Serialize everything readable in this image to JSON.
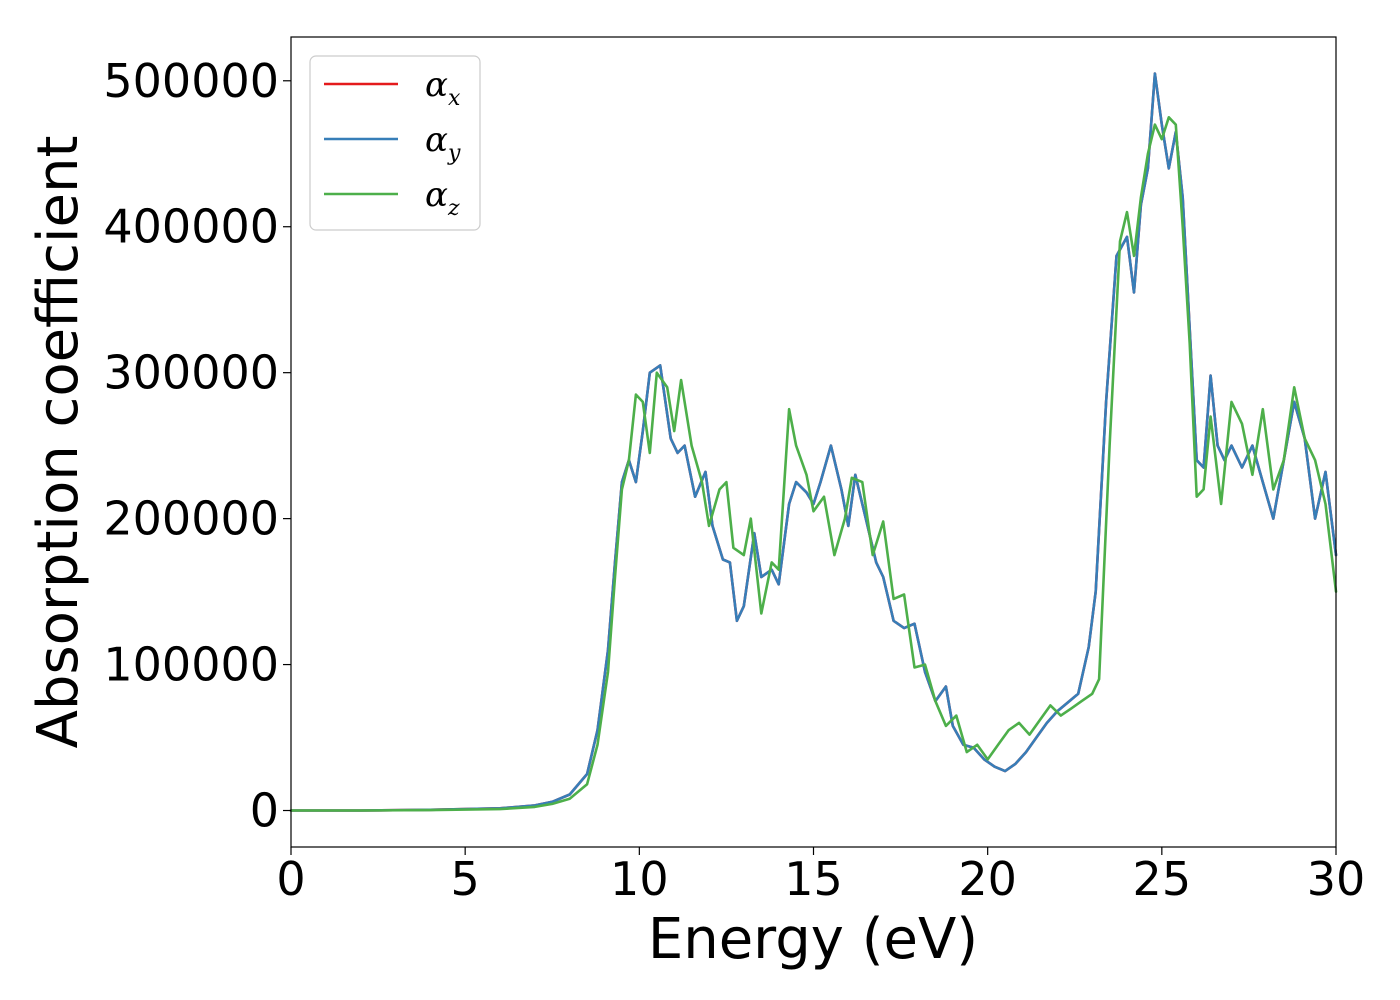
{
  "chart_data": {
    "type": "line",
    "xlabel": "Energy (eV)",
    "ylabel": "Absorption coefficient",
    "xlim": [
      0,
      30
    ],
    "ylim": [
      -25000,
      530000
    ],
    "xticks": [
      0,
      5,
      10,
      15,
      20,
      25,
      30
    ],
    "xtick_labels": [
      "0",
      "5",
      "10",
      "15",
      "20",
      "25",
      "30"
    ],
    "yticks": [
      0,
      100000,
      200000,
      300000,
      400000,
      500000
    ],
    "ytick_labels": [
      "0",
      "100000",
      "200000",
      "300000",
      "400000",
      "500000"
    ],
    "grid": false,
    "legend_position": "top-left",
    "series": [
      {
        "name": "α_x",
        "legend_base": "α",
        "legend_sub": "x",
        "color": "#e41a1c",
        "x": [
          0,
          2,
          4,
          6,
          7,
          7.5,
          8,
          8.5,
          8.8,
          9.1,
          9.3,
          9.5,
          9.7,
          9.9,
          10.1,
          10.3,
          10.6,
          10.9,
          11.1,
          11.3,
          11.6,
          11.9,
          12.1,
          12.4,
          12.6,
          12.8,
          13.0,
          13.3,
          13.5,
          13.8,
          14.0,
          14.3,
          14.5,
          14.8,
          15.0,
          15.2,
          15.5,
          15.8,
          16.0,
          16.2,
          16.5,
          16.8,
          17.0,
          17.3,
          17.6,
          17.9,
          18.2,
          18.5,
          18.8,
          19.0,
          19.3,
          19.6,
          19.9,
          20.2,
          20.5,
          20.8,
          21.1,
          21.4,
          21.7,
          22.0,
          22.3,
          22.6,
          22.9,
          23.1,
          23.4,
          23.7,
          24.0,
          24.2,
          24.4,
          24.6,
          24.8,
          25.0,
          25.2,
          25.4,
          25.6,
          25.8,
          26.0,
          26.2,
          26.4,
          26.6,
          26.8,
          27.0,
          27.3,
          27.6,
          27.9,
          28.2,
          28.5,
          28.8,
          29.1,
          29.4,
          29.7,
          30.0
        ],
        "y": [
          0,
          0,
          500,
          1500,
          3500,
          6000,
          11000,
          25000,
          55000,
          110000,
          170000,
          225000,
          240000,
          225000,
          260000,
          300000,
          305000,
          255000,
          245000,
          250000,
          215000,
          232000,
          195000,
          172000,
          170000,
          130000,
          140000,
          190000,
          160000,
          165000,
          155000,
          210000,
          225000,
          218000,
          210000,
          225000,
          250000,
          220000,
          195000,
          230000,
          200000,
          170000,
          160000,
          130000,
          125000,
          128000,
          95000,
          75000,
          85000,
          58000,
          45000,
          43000,
          35000,
          30000,
          27000,
          32000,
          40000,
          50000,
          60000,
          68000,
          74000,
          80000,
          112000,
          150000,
          280000,
          380000,
          393000,
          355000,
          415000,
          440000,
          505000,
          470000,
          440000,
          465000,
          420000,
          330000,
          240000,
          235000,
          298000,
          250000,
          240000,
          250000,
          235000,
          250000,
          225000,
          200000,
          240000,
          280000,
          255000,
          200000,
          232000,
          175000
        ]
      },
      {
        "name": "α_y",
        "legend_base": "α",
        "legend_sub": "y",
        "color": "#377eb8",
        "x": [
          0,
          2,
          4,
          6,
          7,
          7.5,
          8,
          8.5,
          8.8,
          9.1,
          9.3,
          9.5,
          9.7,
          9.9,
          10.1,
          10.3,
          10.6,
          10.9,
          11.1,
          11.3,
          11.6,
          11.9,
          12.1,
          12.4,
          12.6,
          12.8,
          13.0,
          13.3,
          13.5,
          13.8,
          14.0,
          14.3,
          14.5,
          14.8,
          15.0,
          15.2,
          15.5,
          15.8,
          16.0,
          16.2,
          16.5,
          16.8,
          17.0,
          17.3,
          17.6,
          17.9,
          18.2,
          18.5,
          18.8,
          19.0,
          19.3,
          19.6,
          19.9,
          20.2,
          20.5,
          20.8,
          21.1,
          21.4,
          21.7,
          22.0,
          22.3,
          22.6,
          22.9,
          23.1,
          23.4,
          23.7,
          24.0,
          24.2,
          24.4,
          24.6,
          24.8,
          25.0,
          25.2,
          25.4,
          25.6,
          25.8,
          26.0,
          26.2,
          26.4,
          26.6,
          26.8,
          27.0,
          27.3,
          27.6,
          27.9,
          28.2,
          28.5,
          28.8,
          29.1,
          29.4,
          29.7,
          30.0
        ],
        "y": [
          0,
          0,
          500,
          1500,
          3500,
          6000,
          11000,
          25000,
          55000,
          110000,
          170000,
          225000,
          240000,
          225000,
          260000,
          300000,
          305000,
          255000,
          245000,
          250000,
          215000,
          232000,
          195000,
          172000,
          170000,
          130000,
          140000,
          190000,
          160000,
          165000,
          155000,
          210000,
          225000,
          218000,
          210000,
          225000,
          250000,
          220000,
          195000,
          230000,
          200000,
          170000,
          160000,
          130000,
          125000,
          128000,
          95000,
          75000,
          85000,
          58000,
          45000,
          43000,
          35000,
          30000,
          27000,
          32000,
          40000,
          50000,
          60000,
          68000,
          74000,
          80000,
          112000,
          150000,
          280000,
          380000,
          393000,
          355000,
          415000,
          440000,
          505000,
          470000,
          440000,
          465000,
          420000,
          330000,
          240000,
          235000,
          298000,
          250000,
          240000,
          250000,
          235000,
          250000,
          225000,
          200000,
          240000,
          280000,
          255000,
          200000,
          232000,
          175000
        ]
      },
      {
        "name": "α_z",
        "legend_base": "α",
        "legend_sub": "z",
        "color": "#4daf4a",
        "x": [
          0,
          2,
          4,
          6,
          7,
          7.5,
          8,
          8.5,
          8.8,
          9.1,
          9.3,
          9.5,
          9.7,
          9.9,
          10.1,
          10.3,
          10.5,
          10.8,
          11.0,
          11.2,
          11.5,
          11.8,
          12.0,
          12.3,
          12.5,
          12.7,
          13.0,
          13.2,
          13.5,
          13.8,
          14.0,
          14.3,
          14.5,
          14.8,
          15.0,
          15.3,
          15.6,
          15.9,
          16.1,
          16.4,
          16.7,
          17.0,
          17.3,
          17.6,
          17.9,
          18.2,
          18.5,
          18.8,
          19.1,
          19.4,
          19.7,
          20.0,
          20.3,
          20.6,
          20.9,
          21.2,
          21.5,
          21.8,
          22.1,
          22.4,
          22.7,
          23.0,
          23.2,
          23.5,
          23.8,
          24.0,
          24.2,
          24.4,
          24.6,
          24.8,
          25.0,
          25.2,
          25.4,
          25.6,
          25.8,
          26.0,
          26.2,
          26.4,
          26.7,
          27.0,
          27.3,
          27.6,
          27.9,
          28.2,
          28.5,
          28.8,
          29.1,
          29.4,
          29.7,
          30.0
        ],
        "y": [
          0,
          0,
          300,
          1000,
          2500,
          4500,
          8000,
          18000,
          45000,
          95000,
          160000,
          220000,
          240000,
          285000,
          280000,
          245000,
          300000,
          290000,
          260000,
          295000,
          250000,
          225000,
          195000,
          220000,
          225000,
          180000,
          175000,
          200000,
          135000,
          170000,
          165000,
          275000,
          250000,
          230000,
          205000,
          215000,
          175000,
          200000,
          228000,
          225000,
          175000,
          198000,
          145000,
          148000,
          98000,
          100000,
          75000,
          58000,
          65000,
          40000,
          45000,
          35000,
          45000,
          55000,
          60000,
          52000,
          62000,
          72000,
          65000,
          70000,
          75000,
          80000,
          90000,
          250000,
          390000,
          410000,
          380000,
          420000,
          450000,
          470000,
          460000,
          475000,
          470000,
          400000,
          320000,
          215000,
          220000,
          270000,
          210000,
          280000,
          265000,
          230000,
          275000,
          220000,
          240000,
          290000,
          255000,
          240000,
          210000,
          150000
        ]
      }
    ]
  }
}
